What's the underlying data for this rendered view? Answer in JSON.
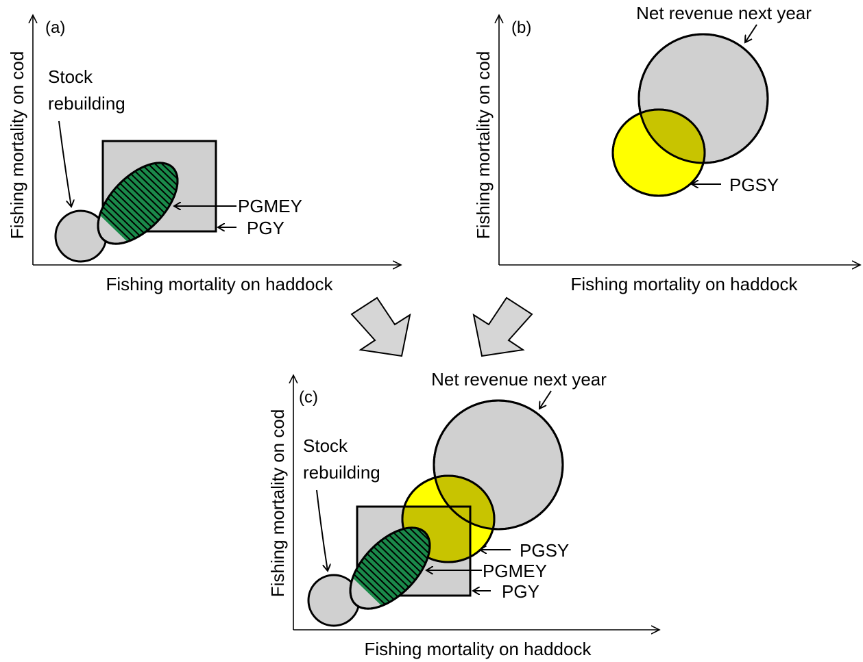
{
  "panels": {
    "a": {
      "tag": "(a)",
      "xlabel": "Fishing mortality on haddock",
      "ylabel": "Fishing mortality on cod",
      "stock_label_1": "Stock",
      "stock_label_2": "rebuilding",
      "pgmey": "PGMEY",
      "pgy": "PGY"
    },
    "b": {
      "tag": "(b)",
      "xlabel": "Fishing mortality on haddock",
      "ylabel": "Fishing mortality on cod",
      "revenue": "Net revenue next year",
      "pgsy": "PGSY"
    },
    "c": {
      "tag": "(c)",
      "xlabel": "Fishing mortality on haddock",
      "ylabel": "Fishing mortality on cod",
      "revenue": "Net revenue next year",
      "stock_label_1": "Stock",
      "stock_label_2": "rebuilding",
      "pgsy": "PGSY",
      "pgmey": "PGMEY",
      "pgy": "PGY"
    }
  },
  "colors": {
    "region_gray": "#d0d0d0",
    "pgsy_yellow": "#ffff00",
    "overlap_olive": "#c8c400",
    "pgmey_green": "#1a8a4a",
    "outline": "#000000",
    "big_arrow_fill": "#d6d6d6"
  }
}
